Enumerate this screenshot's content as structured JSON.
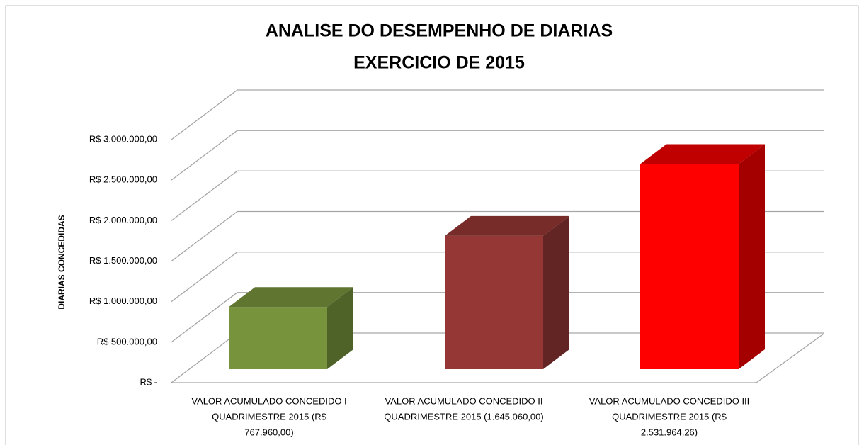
{
  "chart_data": {
    "type": "bar3d",
    "title": [
      "ANALISE DO DESEMPENHO DE DIARIAS",
      "EXERCICIO DE 2015"
    ],
    "y_label": "DIARIAS CONCEDIDAS",
    "categories": [
      [
        "VALOR ACUMULADO  CONCEDIDO I",
        "QUADRIMESTRE  2015 (R$",
        "767.960,00)"
      ],
      [
        "VALOR ACUMULADO  CONCEDIDO II",
        "QUADRIMESTRE  2015  (1.645.060,00)"
      ],
      [
        "VALOR ACUMULADO  CONCEDIDO III",
        "QUADRIMESTRE  2015 (R$",
        "2.531.964,26)"
      ]
    ],
    "values": [
      767960,
      1645060,
      2531964.26
    ],
    "colors": [
      "#77933c",
      "#953735",
      "#ff0000"
    ],
    "top_colors": [
      "#5f7530",
      "#772c2a",
      "#c00000"
    ],
    "side_colors": [
      "#4f6228",
      "#632523",
      "#a50000"
    ],
    "ylim": [
      0,
      3000000
    ],
    "yticks": [
      {
        "value": 0,
        "label": "R$ -"
      },
      {
        "value": 500000,
        "label": "R$ 500.000,00"
      },
      {
        "value": 1000000,
        "label": "R$ 1.000.000,00"
      },
      {
        "value": 1500000,
        "label": "R$ 1.500.000,00"
      },
      {
        "value": 2000000,
        "label": "R$ 2.000.000,00"
      },
      {
        "value": 2500000,
        "label": "R$ 2.500.000,00"
      },
      {
        "value": 3000000,
        "label": "R$ 3.000.000,00"
      }
    ],
    "grid": true
  }
}
